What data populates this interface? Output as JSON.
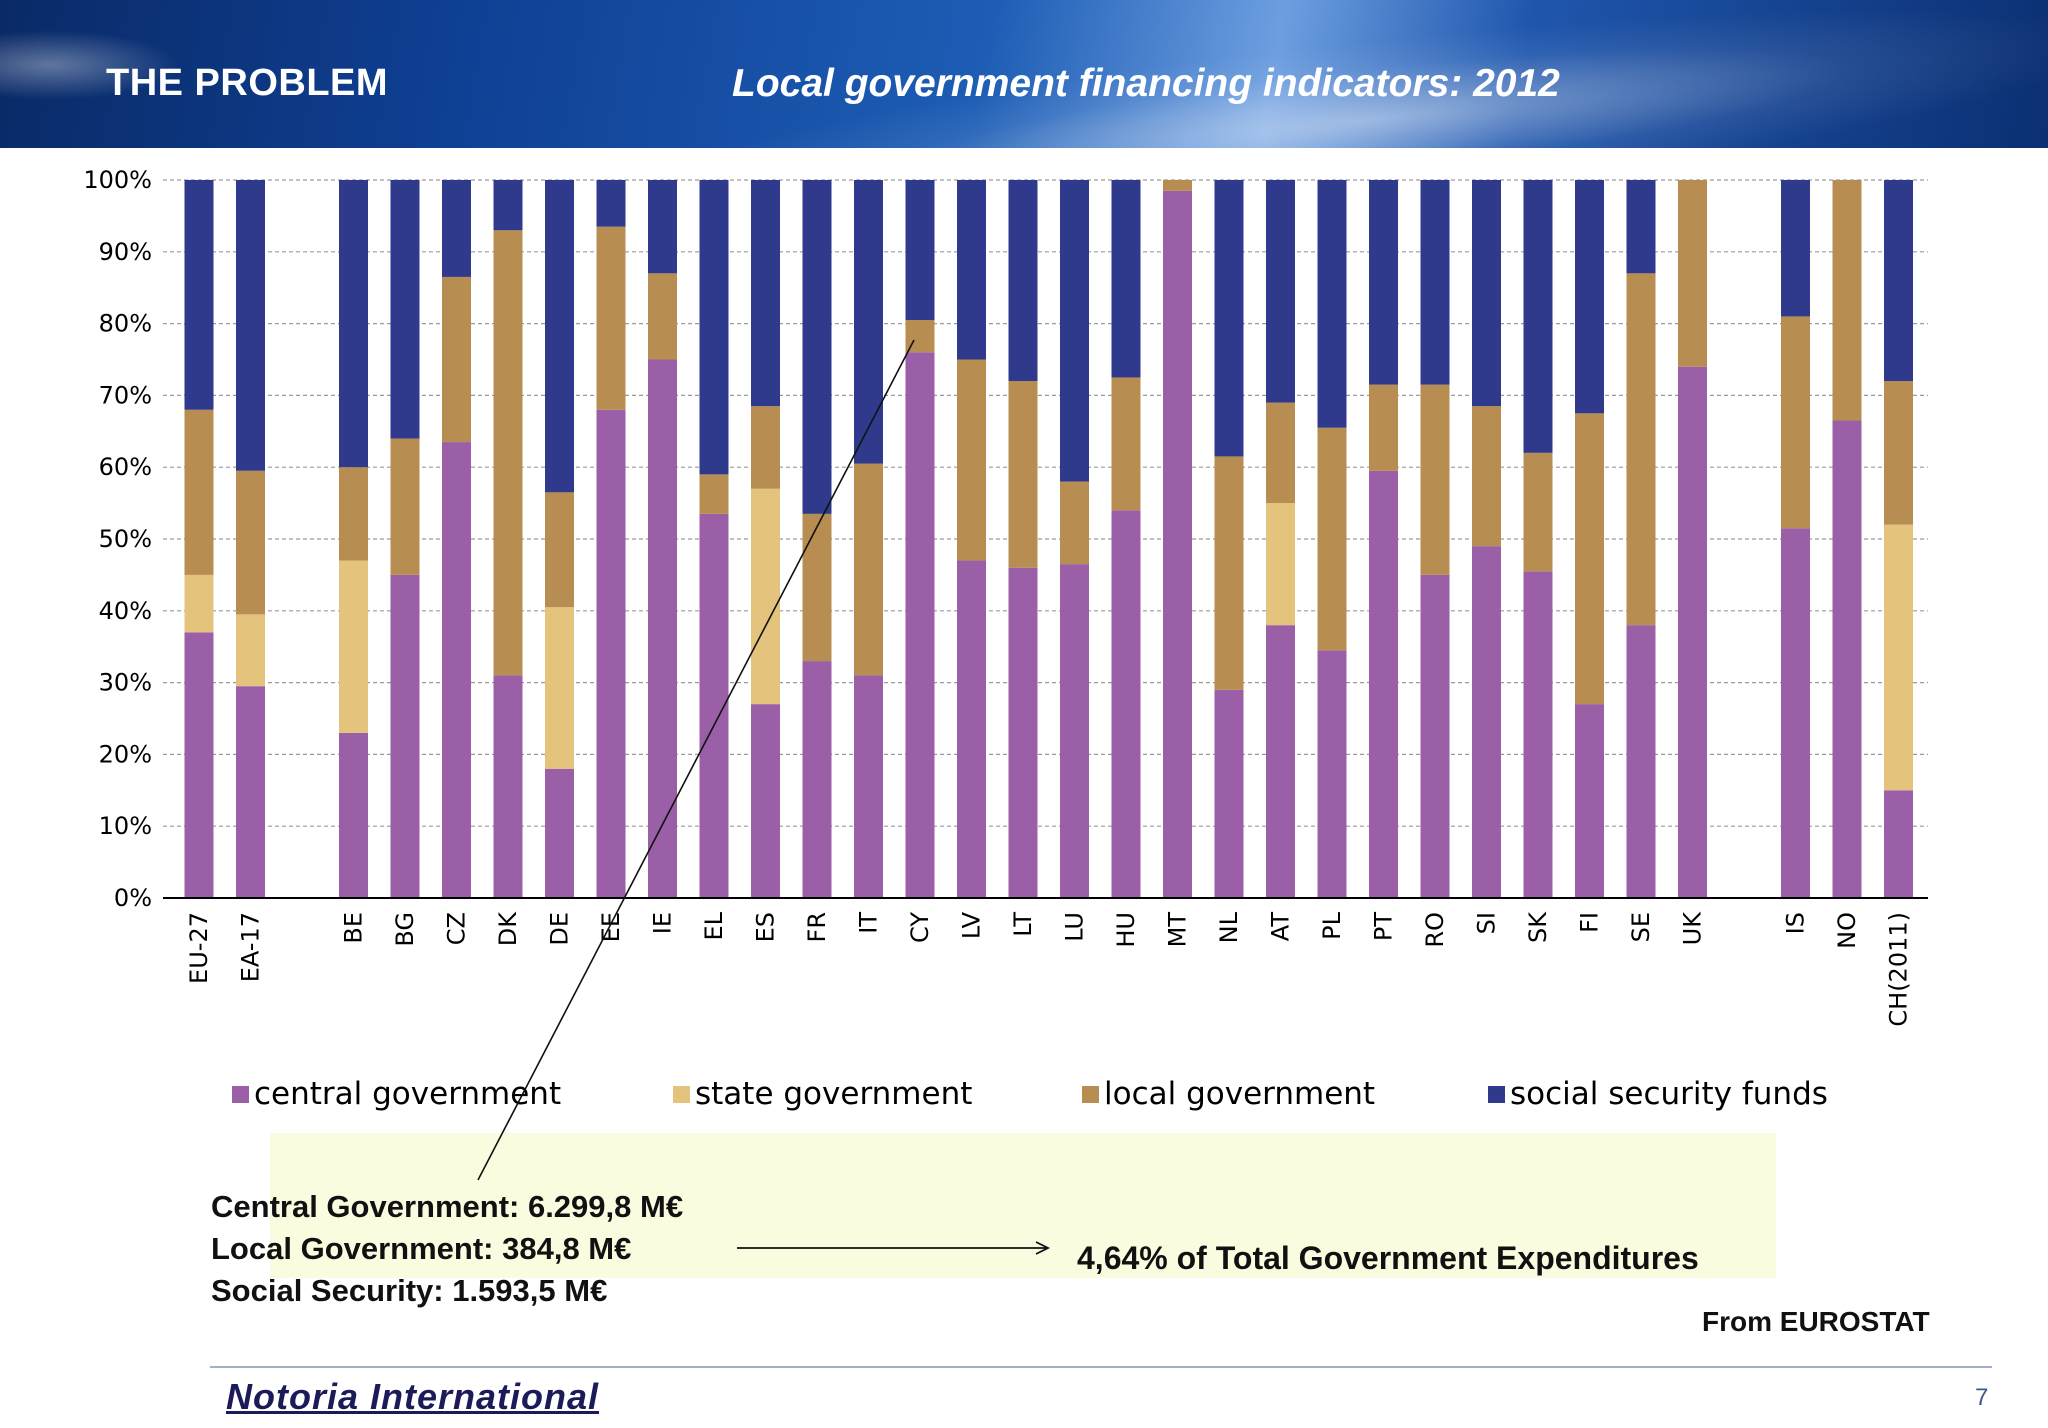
{
  "header": {
    "left_title": "THE PROBLEM",
    "right_title": "Local government financing indicators: 2012"
  },
  "chart_data": {
    "type": "bar",
    "stacked": true,
    "ylim": [
      0,
      100
    ],
    "yticks": [
      "0%",
      "10%",
      "20%",
      "30%",
      "40%",
      "50%",
      "60%",
      "70%",
      "80%",
      "90%",
      "100%"
    ],
    "grid": true,
    "legend_position": "bottom",
    "categories": [
      "EU-27",
      "EA-17",
      "",
      "BE",
      "BG",
      "CZ",
      "DK",
      "DE",
      "EE",
      "IE",
      "EL",
      "ES",
      "FR",
      "IT",
      "CY",
      "LV",
      "LT",
      "LU",
      "HU",
      "MT",
      "NL",
      "AT",
      "PL",
      "PT",
      "RO",
      "SI",
      "SK",
      "FI",
      "SE",
      "UK",
      "",
      "IS",
      "NO",
      "CH(2011)"
    ],
    "series": [
      {
        "name": "central government",
        "color": "#9b5fa8",
        "values": [
          37,
          29.5,
          0,
          23,
          45,
          63.5,
          31,
          18,
          68,
          75,
          53.5,
          27,
          33,
          31,
          76,
          47,
          46,
          46.5,
          54,
          98.5,
          29,
          38,
          34.5,
          59.5,
          45,
          49,
          45.5,
          27,
          38,
          74,
          0,
          51.5,
          66.5,
          15
        ]
      },
      {
        "name": "state government",
        "color": "#e4c47c",
        "values": [
          8,
          10,
          0,
          24,
          0,
          0,
          0,
          22.5,
          0,
          0,
          0,
          30,
          0,
          0,
          0,
          0,
          0,
          0,
          0,
          0,
          0,
          17,
          0,
          0,
          0,
          0,
          0,
          0,
          0,
          0,
          0,
          0,
          0,
          37
        ]
      },
      {
        "name": "local government",
        "color": "#b88d52",
        "values": [
          23,
          20,
          0,
          13,
          19,
          23,
          62,
          16,
          25.5,
          12,
          5.5,
          11.5,
          20.5,
          29.5,
          4.5,
          28,
          26,
          11.5,
          18.5,
          1.5,
          32.5,
          14,
          31,
          12,
          26.5,
          19.5,
          16.5,
          40.5,
          49,
          26,
          0,
          29.5,
          33.5,
          20
        ]
      },
      {
        "name": "social security funds",
        "color": "#303a8c",
        "values": [
          32,
          40.5,
          0,
          40,
          36,
          13.5,
          7,
          43.5,
          6.5,
          13,
          41,
          31.5,
          46.5,
          39.5,
          19.5,
          25,
          28,
          42,
          27.5,
          0,
          38.5,
          31,
          34.5,
          28.5,
          28.5,
          31.5,
          38,
          32.5,
          13,
          0,
          0,
          19,
          0,
          28
        ]
      }
    ]
  },
  "notes": {
    "line1": "Central Government: 6.299,8 M€",
    "line2": "Local Government: 384,8 M€",
    "line3": "Social Security: 1.593,5 M€",
    "total": "4,64% of Total Government Expenditures"
  },
  "source": "From EUROSTAT",
  "footer": {
    "brand": "Notoria International",
    "page": "7"
  }
}
